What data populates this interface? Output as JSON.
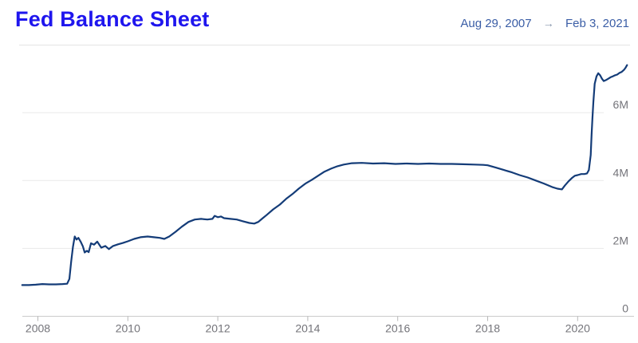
{
  "header": {
    "title": "Fed Balance Sheet",
    "date_start": "Aug 29, 2007",
    "arrow": "→",
    "date_end": "Feb 3, 2021"
  },
  "colors": {
    "title": "#1F16EE",
    "date_range": "#3B5EA6",
    "arrow": "#8494AB",
    "line": "#143C78",
    "grid": "#E9E9E9",
    "axis": "#CBCBCB",
    "tick": "#B8B8B8",
    "axis_text": "#74747A"
  },
  "chart_data": {
    "type": "line",
    "title": "Fed Balance Sheet",
    "xlabel": "",
    "ylabel": "",
    "grid": true,
    "legend": false,
    "x_range": [
      2007.64,
      2021.12
    ],
    "ylim": [
      0,
      7.75
    ],
    "x_ticks": [
      {
        "value": 2008,
        "label": "2008"
      },
      {
        "value": 2010,
        "label": "2010"
      },
      {
        "value": 2012,
        "label": "2012"
      },
      {
        "value": 2014,
        "label": "2014"
      },
      {
        "value": 2016,
        "label": "2016"
      },
      {
        "value": 2018,
        "label": "2018"
      },
      {
        "value": 2020,
        "label": "2020"
      }
    ],
    "y_ticks": [
      {
        "value": 0,
        "label": "0"
      },
      {
        "value": 2,
        "label": "2M"
      },
      {
        "value": 4,
        "label": "4M"
      },
      {
        "value": 6,
        "label": "6M"
      }
    ],
    "series": [
      {
        "name": "Fed Balance Sheet",
        "points": [
          [
            2007.65,
            0.92
          ],
          [
            2007.8,
            0.92
          ],
          [
            2007.95,
            0.93
          ],
          [
            2008.1,
            0.95
          ],
          [
            2008.25,
            0.94
          ],
          [
            2008.4,
            0.94
          ],
          [
            2008.55,
            0.95
          ],
          [
            2008.65,
            0.96
          ],
          [
            2008.7,
            1.1
          ],
          [
            2008.74,
            1.6
          ],
          [
            2008.78,
            2.05
          ],
          [
            2008.82,
            2.35
          ],
          [
            2008.86,
            2.26
          ],
          [
            2008.9,
            2.31
          ],
          [
            2008.95,
            2.2
          ],
          [
            2009.0,
            2.06
          ],
          [
            2009.04,
            1.88
          ],
          [
            2009.09,
            1.93
          ],
          [
            2009.13,
            1.89
          ],
          [
            2009.18,
            2.15
          ],
          [
            2009.25,
            2.11
          ],
          [
            2009.32,
            2.2
          ],
          [
            2009.41,
            2.02
          ],
          [
            2009.5,
            2.07
          ],
          [
            2009.58,
            1.98
          ],
          [
            2009.67,
            2.07
          ],
          [
            2009.78,
            2.12
          ],
          [
            2009.89,
            2.16
          ],
          [
            2010.0,
            2.21
          ],
          [
            2010.14,
            2.28
          ],
          [
            2010.28,
            2.33
          ],
          [
            2010.44,
            2.35
          ],
          [
            2010.58,
            2.33
          ],
          [
            2010.71,
            2.31
          ],
          [
            2010.81,
            2.28
          ],
          [
            2010.92,
            2.35
          ],
          [
            2011.06,
            2.49
          ],
          [
            2011.2,
            2.64
          ],
          [
            2011.35,
            2.78
          ],
          [
            2011.49,
            2.85
          ],
          [
            2011.63,
            2.87
          ],
          [
            2011.77,
            2.85
          ],
          [
            2011.88,
            2.87
          ],
          [
            2011.93,
            2.96
          ],
          [
            2012.0,
            2.92
          ],
          [
            2012.07,
            2.94
          ],
          [
            2012.14,
            2.89
          ],
          [
            2012.28,
            2.87
          ],
          [
            2012.42,
            2.85
          ],
          [
            2012.56,
            2.8
          ],
          [
            2012.7,
            2.75
          ],
          [
            2012.81,
            2.73
          ],
          [
            2012.9,
            2.78
          ],
          [
            2012.98,
            2.87
          ],
          [
            2013.09,
            2.99
          ],
          [
            2013.23,
            3.15
          ],
          [
            2013.38,
            3.29
          ],
          [
            2013.52,
            3.46
          ],
          [
            2013.66,
            3.6
          ],
          [
            2013.8,
            3.76
          ],
          [
            2013.95,
            3.91
          ],
          [
            2014.09,
            4.02
          ],
          [
            2014.23,
            4.14
          ],
          [
            2014.37,
            4.26
          ],
          [
            2014.52,
            4.35
          ],
          [
            2014.66,
            4.42
          ],
          [
            2014.8,
            4.47
          ],
          [
            2014.98,
            4.51
          ],
          [
            2015.2,
            4.52
          ],
          [
            2015.45,
            4.5
          ],
          [
            2015.7,
            4.51
          ],
          [
            2015.95,
            4.49
          ],
          [
            2016.2,
            4.5
          ],
          [
            2016.45,
            4.49
          ],
          [
            2016.7,
            4.5
          ],
          [
            2016.95,
            4.49
          ],
          [
            2017.2,
            4.49
          ],
          [
            2017.45,
            4.48
          ],
          [
            2017.7,
            4.47
          ],
          [
            2017.9,
            4.46
          ],
          [
            2018.0,
            4.45
          ],
          [
            2018.18,
            4.38
          ],
          [
            2018.36,
            4.31
          ],
          [
            2018.54,
            4.24
          ],
          [
            2018.71,
            4.16
          ],
          [
            2018.89,
            4.09
          ],
          [
            2019.07,
            4.0
          ],
          [
            2019.25,
            3.91
          ],
          [
            2019.43,
            3.81
          ],
          [
            2019.55,
            3.76
          ],
          [
            2019.65,
            3.74
          ],
          [
            2019.72,
            3.86
          ],
          [
            2019.8,
            3.98
          ],
          [
            2019.87,
            4.07
          ],
          [
            2019.94,
            4.14
          ],
          [
            2020.0,
            4.16
          ],
          [
            2020.08,
            4.19
          ],
          [
            2020.15,
            4.19
          ],
          [
            2020.21,
            4.21
          ],
          [
            2020.25,
            4.31
          ],
          [
            2020.29,
            4.75
          ],
          [
            2020.31,
            5.35
          ],
          [
            2020.33,
            5.85
          ],
          [
            2020.35,
            6.3
          ],
          [
            2020.38,
            6.85
          ],
          [
            2020.42,
            7.07
          ],
          [
            2020.46,
            7.16
          ],
          [
            2020.5,
            7.1
          ],
          [
            2020.54,
            7.0
          ],
          [
            2020.58,
            6.93
          ],
          [
            2020.63,
            6.96
          ],
          [
            2020.68,
            7.0
          ],
          [
            2020.73,
            7.04
          ],
          [
            2020.78,
            7.07
          ],
          [
            2020.83,
            7.1
          ],
          [
            2020.88,
            7.12
          ],
          [
            2020.93,
            7.17
          ],
          [
            2020.98,
            7.2
          ],
          [
            2021.03,
            7.26
          ],
          [
            2021.07,
            7.33
          ],
          [
            2021.1,
            7.4
          ]
        ]
      }
    ]
  }
}
